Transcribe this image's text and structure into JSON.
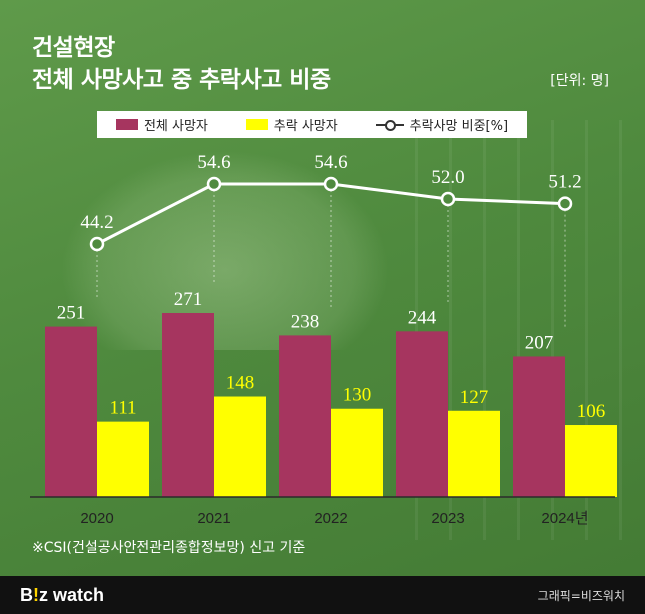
{
  "title": {
    "line1": "건설현장",
    "line2": "전체 사망사고 중 추락사고 비중"
  },
  "unit": "[단위: 명]",
  "legend": {
    "total": "전체 사망자",
    "fall": "추락 사망자",
    "ratio": "추락사망 비중[%]"
  },
  "colors": {
    "total": "#a6355f",
    "fall": "#ffff00",
    "line": "#ffffff"
  },
  "chart_data": {
    "type": "bar",
    "categories": [
      "2020",
      "2021",
      "2022",
      "2023",
      "2024년"
    ],
    "series": [
      {
        "name": "전체 사망자",
        "values": [
          251,
          271,
          238,
          244,
          207
        ],
        "labels": [
          "251",
          "271",
          "238",
          "244",
          "207"
        ]
      },
      {
        "name": "추락 사망자",
        "values": [
          111,
          148,
          130,
          127,
          106
        ],
        "labels": [
          "111",
          "148",
          "130",
          "127",
          "106"
        ]
      }
    ],
    "line_series": {
      "name": "추락사망 비중[%]",
      "values": [
        44.2,
        54.6,
        54.6,
        52.0,
        51.2
      ],
      "labels": [
        "44.2",
        "54.6",
        "54.6",
        "52.0",
        "51.2"
      ]
    },
    "title": "건설현장 전체 사망사고 중 추락사고 비중",
    "ylabel": "명",
    "ylim": [
      0,
      300
    ]
  },
  "footnote": "※CSI(건설공사안전관리종합정보망) 신고 기준",
  "footer": {
    "logo_b": "B",
    "logo_sep": "!",
    "logo_z": "z",
    "logo_watch": " watch",
    "credit": "그래픽=비즈워치"
  }
}
